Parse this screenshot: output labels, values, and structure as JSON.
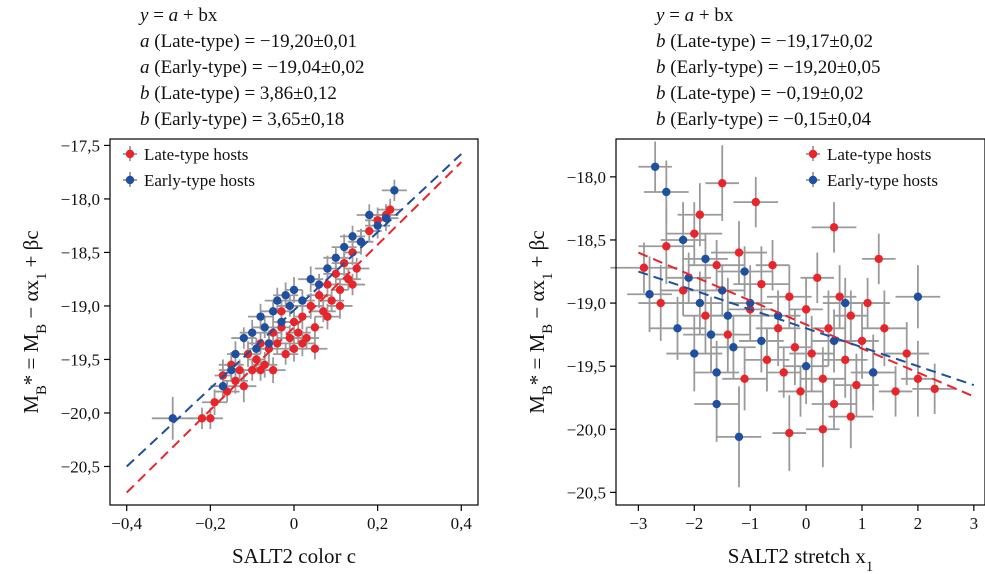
{
  "chart_data": [
    {
      "type": "scatter",
      "equation_lines": [
        "y = a + bx",
        "a (Late-type) = −19,20±0,01",
        "a (Early-type) = −19,04±0,02",
        "b (Late-type) = 3,86±0,12",
        "b (Early-type) = 3,65±0,18"
      ],
      "xlabel": "SALT2 color c",
      "ylabel": "M_B* = M_B − αx_1 + βc",
      "xlim": [
        -0.44,
        0.44
      ],
      "ylim": [
        -20.86,
        -17.44
      ],
      "xticks": [
        -0.4,
        -0.2,
        0.0,
        0.2,
        0.4
      ],
      "xtick_labels": [
        "−0,4",
        "−0,2",
        "0",
        "0,2",
        "0,4"
      ],
      "yticks": [
        -20.5,
        -20.0,
        -19.5,
        -19.0,
        -18.5,
        -18.0,
        -17.5
      ],
      "ytick_labels": [
        "−20,5",
        "−20,0",
        "−19,5",
        "−19,0",
        "−18,5",
        "−18,0",
        "−17,5"
      ],
      "legend_position": "top-left",
      "series": [
        {
          "name": "Late-type hosts",
          "color": "#e8252a",
          "fit": {
            "a": -19.2,
            "b": 3.86
          },
          "points": [
            [
              -0.22,
              -20.05,
              0.03,
              0.1
            ],
            [
              -0.2,
              -20.05,
              0.03,
              0.1
            ],
            [
              -0.19,
              -19.9,
              0.03,
              0.12
            ],
            [
              -0.17,
              -19.65,
              0.02,
              0.15
            ],
            [
              -0.16,
              -19.8,
              0.03,
              0.1
            ],
            [
              -0.15,
              -19.55,
              0.03,
              0.12
            ],
            [
              -0.14,
              -19.7,
              0.03,
              0.12
            ],
            [
              -0.13,
              -19.6,
              0.02,
              0.1
            ],
            [
              -0.12,
              -19.75,
              0.03,
              0.15
            ],
            [
              -0.11,
              -19.45,
              0.03,
              0.12
            ],
            [
              -0.1,
              -19.6,
              0.03,
              0.1
            ],
            [
              -0.09,
              -19.5,
              0.02,
              0.12
            ],
            [
              -0.08,
              -19.35,
              0.03,
              0.1
            ],
            [
              -0.07,
              -19.55,
              0.03,
              0.12
            ],
            [
              -0.06,
              -19.4,
              0.03,
              0.15
            ],
            [
              -0.05,
              -19.25,
              0.02,
              0.1
            ],
            [
              -0.05,
              -19.6,
              0.03,
              0.12
            ],
            [
              -0.04,
              -19.35,
              0.03,
              0.1
            ],
            [
              -0.03,
              -19.2,
              0.02,
              0.12
            ],
            [
              -0.02,
              -19.45,
              0.03,
              0.1
            ],
            [
              -0.01,
              -19.3,
              0.03,
              0.12
            ],
            [
              0.0,
              -19.15,
              0.02,
              0.1
            ],
            [
              0.0,
              -19.4,
              0.03,
              0.12
            ],
            [
              0.01,
              -19.25,
              0.03,
              0.1
            ],
            [
              0.02,
              -19.1,
              0.02,
              0.12
            ],
            [
              0.03,
              -19.3,
              0.03,
              0.1
            ],
            [
              0.04,
              -19.0,
              0.03,
              0.12
            ],
            [
              0.05,
              -19.2,
              0.02,
              0.1
            ],
            [
              0.06,
              -18.9,
              0.03,
              0.12
            ],
            [
              0.07,
              -19.05,
              0.03,
              0.1
            ],
            [
              0.08,
              -18.8,
              0.02,
              0.12
            ],
            [
              0.09,
              -18.95,
              0.03,
              0.1
            ],
            [
              0.1,
              -18.7,
              0.03,
              0.12
            ],
            [
              0.11,
              -18.85,
              0.02,
              0.1
            ],
            [
              0.12,
              -18.6,
              0.03,
              0.12
            ],
            [
              0.13,
              -18.75,
              0.03,
              0.1
            ],
            [
              0.14,
              -18.5,
              0.02,
              0.12
            ],
            [
              0.15,
              -18.65,
              0.03,
              0.1
            ],
            [
              0.16,
              -18.4,
              0.03,
              0.12
            ],
            [
              0.18,
              -18.3,
              0.03,
              0.1
            ],
            [
              0.2,
              -18.2,
              0.03,
              0.12
            ],
            [
              0.22,
              -18.15,
              0.03,
              0.1
            ],
            [
              0.23,
              -18.1,
              0.03,
              0.1
            ],
            [
              0.02,
              -19.35,
              0.03,
              0.12
            ],
            [
              -0.03,
              -19.05,
              0.03,
              0.1
            ],
            [
              0.05,
              -19.4,
              0.03,
              0.1
            ],
            [
              0.08,
              -19.1,
              0.03,
              0.12
            ],
            [
              -0.08,
              -19.6,
              0.03,
              0.1
            ],
            [
              0.11,
              -19.0,
              0.03,
              0.12
            ],
            [
              0.14,
              -18.8,
              0.03,
              0.1
            ]
          ]
        },
        {
          "name": "Early-type hosts",
          "color": "#1f4fa0",
          "fit": {
            "a": -19.04,
            "b": 3.65
          },
          "points": [
            [
              -0.29,
              -20.05,
              0.05,
              0.2
            ],
            [
              -0.17,
              -19.75,
              0.03,
              0.12
            ],
            [
              -0.15,
              -19.6,
              0.03,
              0.1
            ],
            [
              -0.14,
              -19.45,
              0.02,
              0.12
            ],
            [
              -0.12,
              -19.3,
              0.03,
              0.1
            ],
            [
              -0.1,
              -19.25,
              0.03,
              0.12
            ],
            [
              -0.09,
              -19.4,
              0.02,
              0.1
            ],
            [
              -0.08,
              -19.1,
              0.03,
              0.12
            ],
            [
              -0.07,
              -19.2,
              0.03,
              0.1
            ],
            [
              -0.06,
              -19.35,
              0.02,
              0.12
            ],
            [
              -0.05,
              -19.05,
              0.03,
              0.1
            ],
            [
              -0.04,
              -18.95,
              0.03,
              0.12
            ],
            [
              -0.03,
              -19.15,
              0.02,
              0.1
            ],
            [
              -0.02,
              -18.9,
              0.03,
              0.12
            ],
            [
              -0.01,
              -19.0,
              0.03,
              0.1
            ],
            [
              0.0,
              -18.85,
              0.02,
              0.12
            ],
            [
              0.02,
              -18.95,
              0.03,
              0.1
            ],
            [
              0.04,
              -18.75,
              0.03,
              0.12
            ],
            [
              0.06,
              -18.8,
              0.02,
              0.1
            ],
            [
              0.08,
              -18.65,
              0.03,
              0.12
            ],
            [
              0.1,
              -18.55,
              0.03,
              0.1
            ],
            [
              0.12,
              -18.45,
              0.03,
              0.12
            ],
            [
              0.14,
              -18.35,
              0.03,
              0.1
            ],
            [
              0.16,
              -18.4,
              0.03,
              0.12
            ],
            [
              0.18,
              -18.15,
              0.03,
              0.1
            ],
            [
              0.2,
              -18.25,
              0.03,
              0.12
            ],
            [
              0.24,
              -17.92,
              0.03,
              0.1
            ],
            [
              0.22,
              -18.18,
              0.03,
              0.12
            ]
          ]
        }
      ]
    },
    {
      "type": "scatter",
      "equation_lines": [
        "y = a + bx",
        "b (Late-type) = −19,17±0,02",
        "b (Early-type) = −19,20±0,05",
        "b (Late-type) = −0,19±0,02",
        "b (Early-type) = −0,15±0,04"
      ],
      "xlabel": "SALT2 stretch x_1",
      "ylabel": "M_B* = M_B − αx_1 + βc",
      "xlim": [
        -3.4,
        3.2
      ],
      "ylim": [
        -20.6,
        -17.7
      ],
      "xticks": [
        -3,
        -2,
        -1,
        0,
        1,
        2,
        3
      ],
      "xtick_labels": [
        "−3",
        "−2",
        "−1",
        "0",
        "1",
        "2",
        "3"
      ],
      "yticks": [
        -20.5,
        -20.0,
        -19.5,
        -19.0,
        -18.5,
        -18.0
      ],
      "ytick_labels": [
        "−20,5",
        "−20,0",
        "−19,5",
        "−19,0",
        "−18,5",
        "−18,0"
      ],
      "legend_position": "top-right",
      "series": [
        {
          "name": "Late-type hosts",
          "color": "#e8252a",
          "fit": {
            "a": -19.17,
            "b": -0.19
          },
          "points": [
            [
              -2.9,
              -18.72,
              0.6,
              0.2
            ],
            [
              -2.5,
              -18.55,
              0.5,
              0.3
            ],
            [
              -2.2,
              -18.9,
              0.4,
              0.2
            ],
            [
              -2.0,
              -18.45,
              0.5,
              0.25
            ],
            [
              -1.8,
              -19.1,
              0.4,
              0.3
            ],
            [
              -1.6,
              -18.7,
              0.5,
              0.2
            ],
            [
              -1.4,
              -19.25,
              0.4,
              0.3
            ],
            [
              -1.2,
              -18.6,
              0.5,
              0.25
            ],
            [
              -1.0,
              -19.05,
              0.4,
              0.2
            ],
            [
              -0.8,
              -18.85,
              0.5,
              0.3
            ],
            [
              -0.7,
              -19.45,
              0.4,
              0.25
            ],
            [
              -0.6,
              -18.7,
              0.3,
              0.2
            ],
            [
              -0.5,
              -19.2,
              0.4,
              0.3
            ],
            [
              -0.4,
              -19.55,
              0.3,
              0.2
            ],
            [
              -0.3,
              -18.95,
              0.4,
              0.25
            ],
            [
              -0.2,
              -19.35,
              0.3,
              0.3
            ],
            [
              -0.1,
              -19.7,
              0.4,
              0.2
            ],
            [
              0.0,
              -19.05,
              0.3,
              0.25
            ],
            [
              0.1,
              -19.4,
              0.4,
              0.3
            ],
            [
              0.2,
              -18.8,
              0.3,
              0.2
            ],
            [
              0.3,
              -19.6,
              0.4,
              0.25
            ],
            [
              0.4,
              -19.2,
              0.3,
              0.3
            ],
            [
              0.5,
              -19.8,
              0.4,
              0.2
            ],
            [
              0.6,
              -18.95,
              0.3,
              0.25
            ],
            [
              0.7,
              -19.45,
              0.4,
              0.3
            ],
            [
              0.8,
              -19.1,
              0.3,
              0.2
            ],
            [
              0.9,
              -19.65,
              0.4,
              0.25
            ],
            [
              1.0,
              -19.3,
              0.3,
              0.3
            ],
            [
              1.1,
              -19.0,
              0.4,
              0.2
            ],
            [
              1.2,
              -19.55,
              0.3,
              0.25
            ],
            [
              1.4,
              -19.2,
              0.4,
              0.3
            ],
            [
              1.6,
              -19.7,
              0.3,
              0.2
            ],
            [
              1.8,
              -19.4,
              0.4,
              0.25
            ],
            [
              2.0,
              -19.6,
              0.3,
              0.3
            ],
            [
              2.3,
              -19.68,
              0.4,
              0.2
            ],
            [
              -2.6,
              -19.0,
              0.4,
              0.3
            ],
            [
              -1.9,
              -18.3,
              0.4,
              0.25
            ],
            [
              -1.5,
              -18.05,
              0.3,
              0.3
            ],
            [
              -0.9,
              -18.2,
              0.4,
              0.2
            ],
            [
              0.3,
              -20.0,
              0.3,
              0.3
            ],
            [
              0.8,
              -19.9,
              0.4,
              0.25
            ],
            [
              1.3,
              -18.65,
              0.3,
              0.2
            ],
            [
              -0.3,
              -20.03,
              0.3,
              0.3
            ],
            [
              0.5,
              -18.4,
              0.4,
              0.2
            ],
            [
              -1.1,
              -19.6,
              0.4,
              0.25
            ]
          ]
        },
        {
          "name": "Early-type hosts",
          "color": "#1f4fa0",
          "fit": {
            "a": -19.2,
            "b": -0.15
          },
          "points": [
            [
              -2.7,
              -17.92,
              0.3,
              0.2
            ],
            [
              -2.5,
              -18.12,
              0.4,
              0.25
            ],
            [
              -2.8,
              -18.93,
              0.4,
              0.3
            ],
            [
              -2.3,
              -19.2,
              0.5,
              0.25
            ],
            [
              -2.1,
              -18.8,
              0.4,
              0.2
            ],
            [
              -2.0,
              -19.4,
              0.5,
              0.3
            ],
            [
              -1.9,
              -19.0,
              0.4,
              0.25
            ],
            [
              -1.8,
              -18.65,
              0.4,
              0.2
            ],
            [
              -1.7,
              -19.25,
              0.5,
              0.3
            ],
            [
              -1.6,
              -19.55,
              0.4,
              0.25
            ],
            [
              -1.5,
              -18.9,
              0.4,
              0.2
            ],
            [
              -1.4,
              -19.1,
              0.5,
              0.3
            ],
            [
              -1.3,
              -19.35,
              0.4,
              0.25
            ],
            [
              -1.2,
              -20.06,
              0.4,
              0.4
            ],
            [
              -1.1,
              -18.75,
              0.5,
              0.2
            ],
            [
              -1.0,
              -19.0,
              0.4,
              0.3
            ],
            [
              -0.8,
              -19.3,
              0.4,
              0.25
            ],
            [
              -0.5,
              -19.1,
              0.4,
              0.2
            ],
            [
              0.0,
              -19.5,
              0.4,
              0.3
            ],
            [
              0.5,
              -19.3,
              0.4,
              0.25
            ],
            [
              0.7,
              -19.0,
              0.4,
              0.2
            ],
            [
              1.2,
              -19.55,
              0.4,
              0.3
            ],
            [
              2.0,
              -18.95,
              0.4,
              0.25
            ],
            [
              -2.2,
              -18.5,
              0.4,
              0.3
            ],
            [
              -1.6,
              -19.8,
              0.4,
              0.3
            ]
          ]
        }
      ]
    }
  ]
}
